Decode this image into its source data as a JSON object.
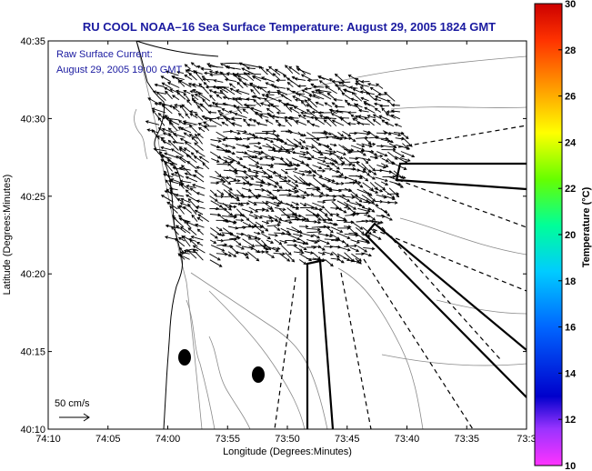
{
  "title": "RU COOL  NOAA–16  Sea Surface Temperature:  August 29, 2005 1824 GMT",
  "overlay": {
    "line1": "Raw Surface Current:",
    "line2": "August 29, 2005 19:00 GMT"
  },
  "scale_label": "50 cm/s",
  "xlabel": "Longitude (Degrees:Minutes)",
  "ylabel": "Latitude (Degrees:Minutes)",
  "x_ticks": [
    "74:10",
    "74:05",
    "74:00",
    "73:55",
    "73:50",
    "73:45",
    "73:40",
    "73:35",
    "73:3"
  ],
  "y_ticks": [
    "40:35",
    "40:30",
    "40:25",
    "40:20",
    "40:15",
    "40:10"
  ],
  "colorbar": {
    "label": "Temperature (°C)",
    "ticks": [
      "30",
      "28",
      "26",
      "24",
      "22",
      "20",
      "18",
      "16",
      "14",
      "12",
      "10"
    ],
    "range": [
      10,
      30
    ]
  },
  "colors": {
    "title": "#1a1aa0",
    "land_line": "#000000",
    "contour": "#888888"
  }
}
